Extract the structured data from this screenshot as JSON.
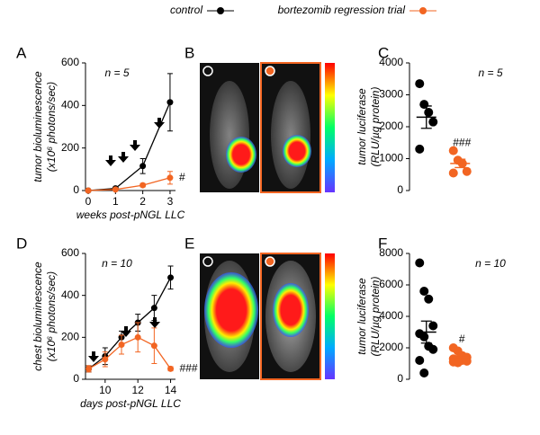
{
  "legend": {
    "items": [
      {
        "name": "control",
        "color": "#000000"
      },
      {
        "name": "bortezomib regression trial",
        "color": "#f26522"
      }
    ]
  },
  "image_panels": [
    {
      "label": "B"
    },
    {
      "label": "E"
    }
  ],
  "chart_data": [
    {
      "type": "line",
      "panel": "A",
      "ylabel": [
        "tumor bioluminescence",
        "(x10⁶ photons/sec)"
      ],
      "xlabel": "weeks post-pNGL LLC",
      "x": [
        0,
        1,
        2,
        3
      ],
      "xlim": [
        -0.1,
        3.2
      ],
      "xticks": [
        0,
        1,
        2,
        3
      ],
      "ylim": [
        0,
        600
      ],
      "yticks": [
        0,
        200,
        400,
        600
      ],
      "n_label": "n = 5",
      "significance": "#",
      "series": [
        {
          "color": "#000000",
          "values": [
            0,
            10,
            115,
            415
          ],
          "errors": [
            0,
            5,
            35,
            135
          ]
        },
        {
          "color": "#f26522",
          "values": [
            0,
            5,
            25,
            60
          ],
          "errors": [
            0,
            3,
            8,
            30
          ]
        }
      ]
    },
    {
      "type": "dot",
      "panel": "C",
      "ylabel": [
        "tumor luciferase",
        "(RLU/µg protein)"
      ],
      "ylim": [
        0,
        4000
      ],
      "yticks": [
        0,
        1000,
        2000,
        3000,
        4000
      ],
      "n_label": "n = 5",
      "significance": "###",
      "series": [
        {
          "color": "#000000",
          "values": [
            3350,
            2700,
            2450,
            2150,
            1300
          ],
          "mean": 2300,
          "sem": 350
        },
        {
          "color": "#f26522",
          "values": [
            1250,
            950,
            850,
            600,
            550
          ],
          "mean": 850,
          "sem": 130
        }
      ]
    },
    {
      "type": "line",
      "panel": "D",
      "ylabel": [
        "chest bioluminescence",
        "(x10⁶ photons/sec)"
      ],
      "xlabel": "days post-pNGL LLC",
      "x": [
        9,
        10,
        11,
        12,
        13,
        14
      ],
      "xlim": [
        8.8,
        14.3
      ],
      "xticks": [
        10,
        12,
        14
      ],
      "ylim": [
        0,
        600
      ],
      "yticks": [
        0,
        200,
        400,
        600
      ],
      "n_label": "n = 10",
      "significance": "###",
      "series": [
        {
          "color": "#000000",
          "values": [
            50,
            110,
            200,
            270,
            340,
            485
          ],
          "errors": [
            15,
            40,
            30,
            40,
            60,
            55
          ]
        },
        {
          "color": "#f26522",
          "values": [
            50,
            95,
            165,
            200,
            160,
            50
          ],
          "errors": [
            15,
            35,
            45,
            70,
            85,
            10
          ]
        }
      ]
    },
    {
      "type": "dot",
      "panel": "F",
      "ylabel": [
        "tumor luciferase",
        "(RLU/µg protein)"
      ],
      "ylim": [
        0,
        8000
      ],
      "yticks": [
        0,
        2000,
        4000,
        6000,
        8000
      ],
      "n_label": "n = 10",
      "significance": "#",
      "series": [
        {
          "color": "#000000",
          "values": [
            7400,
            5600,
            5100,
            3400,
            2900,
            2700,
            2100,
            1900,
            1200,
            400
          ],
          "mean": 3000,
          "sem": 700
        },
        {
          "color": "#f26522",
          "values": [
            2000,
            1800,
            1500,
            1400,
            1300,
            1250,
            1200,
            1150,
            1100,
            1050
          ],
          "mean": 1400,
          "sem": 100
        }
      ]
    }
  ]
}
